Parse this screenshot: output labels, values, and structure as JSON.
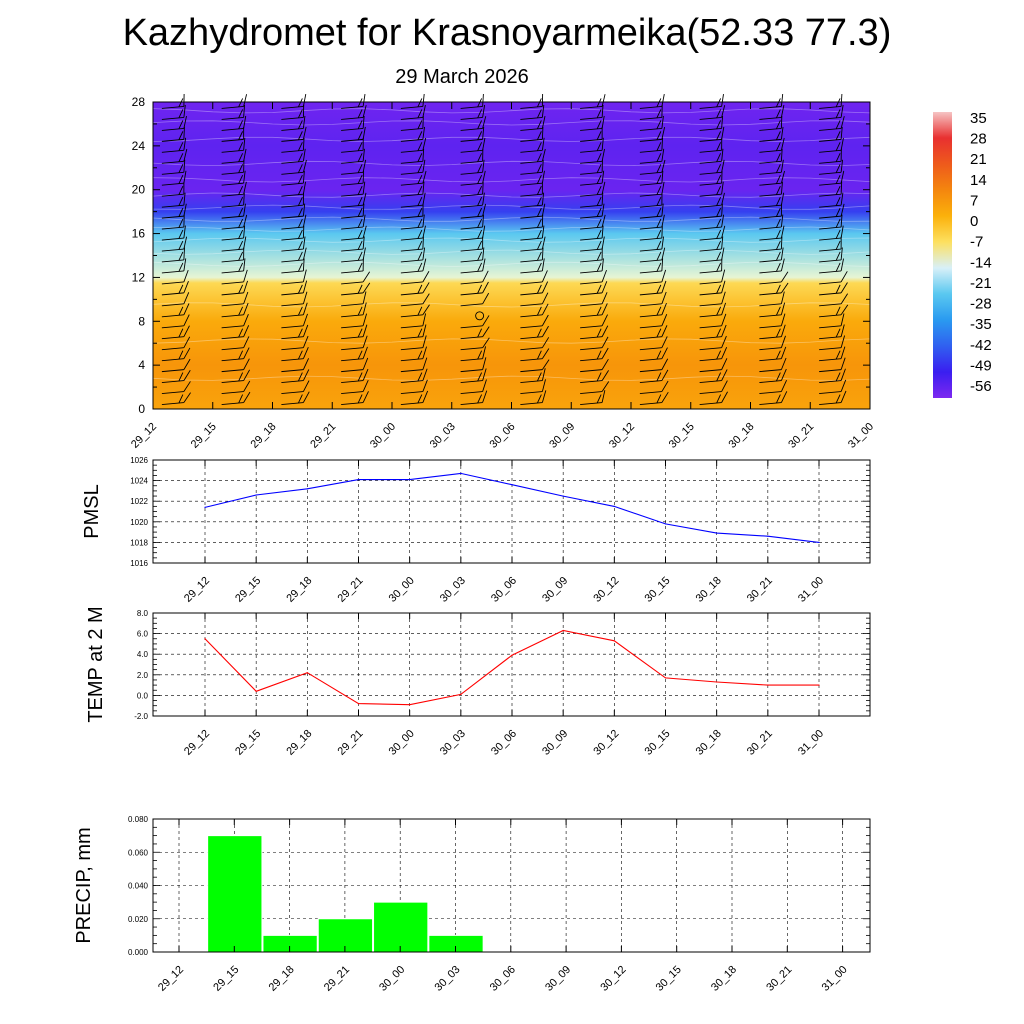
{
  "header": {
    "title": "Kazhydromet for Krasnoyarmeika(52.33 77.3)",
    "subtitle": "29 March 2026"
  },
  "chart_data": [
    {
      "type": "heatmap",
      "name": "vertical-cross-section",
      "x_ticks": [
        "29_12",
        "29_15",
        "29_18",
        "29_21",
        "30_00",
        "30_03",
        "30_06",
        "30_09",
        "30_12",
        "30_15",
        "30_18",
        "30_21",
        "31_00"
      ],
      "y_ticks": [
        "0",
        "4",
        "8",
        "12",
        "16",
        "20",
        "24",
        "28"
      ],
      "ylim": [
        0,
        28
      ],
      "colorbar_labels": [
        "35",
        "28",
        "21",
        "14",
        "7",
        "0",
        "-7",
        "-14",
        "-21",
        "-28",
        "-35",
        "-42",
        "-49",
        "-56"
      ],
      "colormap": [
        "#f6c4c4",
        "#e83030",
        "#ee5a1c",
        "#f4860e",
        "#fbb10b",
        "#fde060",
        "#d8f0f8",
        "#5ac8f0",
        "#2a9af0",
        "#3060f0",
        "#3a1ef0",
        "#7d28f0"
      ],
      "temperature_rows": [
        {
          "y": 0,
          "value": 2
        },
        {
          "y": 4,
          "value": 4
        },
        {
          "y": 8,
          "value": 1
        },
        {
          "y": 11.5,
          "value": -6
        },
        {
          "y": 12,
          "value": -15
        },
        {
          "y": 16,
          "value": -28
        },
        {
          "y": 18,
          "value": -47
        },
        {
          "y": 20,
          "value": -53
        },
        {
          "y": 24,
          "value": -52
        },
        {
          "y": 28,
          "value": -55
        }
      ],
      "wind_levels": [
        0.5,
        1.5,
        2.5,
        3.5,
        4.5,
        5.5,
        6.5,
        7.5,
        8.5,
        9.5,
        10.5,
        11.5,
        12.5,
        13.5,
        14.5,
        15.5,
        16.5,
        17.5,
        18.5,
        19.5,
        20.5,
        21.5,
        22.5,
        23.5,
        24.5,
        25.5,
        26.5,
        27.5
      ]
    },
    {
      "type": "line",
      "name": "pmsl",
      "ylabel": "PMSL",
      "categories": [
        "29_12",
        "29_15",
        "29_18",
        "29_21",
        "30_00",
        "30_03",
        "30_06",
        "30_09",
        "30_12",
        "30_15",
        "30_18",
        "30_21",
        "31_00"
      ],
      "y_ticks": [
        "1016",
        "1018",
        "1020",
        "1022",
        "1024",
        "1026"
      ],
      "ylim": [
        1016,
        1026
      ],
      "values": [
        1021.4,
        1022.6,
        1023.2,
        1024.1,
        1024.1,
        1024.7,
        1023.6,
        1022.5,
        1021.5,
        1019.8,
        1018.9,
        1018.6,
        1018.0
      ],
      "color": "#0000ff"
    },
    {
      "type": "line",
      "name": "temp-2m",
      "ylabel": "TEMP at 2 M",
      "categories": [
        "29_12",
        "29_15",
        "29_18",
        "29_21",
        "30_00",
        "30_03",
        "30_06",
        "30_09",
        "30_12",
        "30_15",
        "30_18",
        "30_21",
        "31_00"
      ],
      "y_ticks": [
        "-2.0",
        "0.0",
        "2.0",
        "4.0",
        "6.0",
        "8.0"
      ],
      "ylim": [
        -2,
        8
      ],
      "values": [
        5.5,
        0.4,
        2.2,
        -0.8,
        -0.9,
        0.1,
        3.9,
        6.3,
        5.3,
        1.7,
        1.3,
        1.0,
        1.0
      ],
      "color": "#ff0000"
    },
    {
      "type": "bar",
      "name": "precip",
      "ylabel": "PRECIP, mm",
      "categories": [
        "29_12",
        "29_15",
        "29_18",
        "29_21",
        "30_00",
        "30_03",
        "30_06",
        "30_09",
        "30_12",
        "30_15",
        "30_18",
        "30_21",
        "31_00"
      ],
      "y_ticks": [
        "0.000",
        "0.020",
        "0.040",
        "0.060",
        "0.080"
      ],
      "ylim": [
        0,
        0.08
      ],
      "values": [
        0,
        0.07,
        0.01,
        0.02,
        0.03,
        0.01,
        0,
        0,
        0,
        0,
        0,
        0,
        0
      ],
      "color": "#00ff00"
    }
  ]
}
